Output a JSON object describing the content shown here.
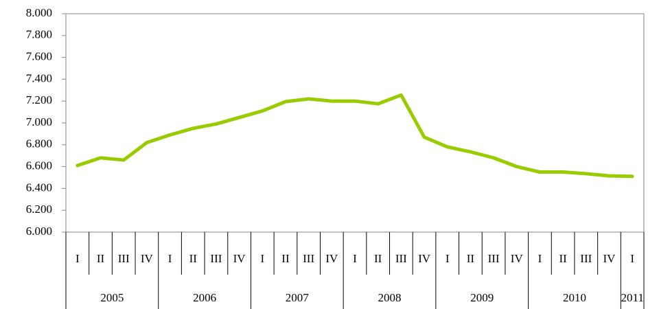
{
  "chart_data": {
    "type": "line",
    "categories": [
      "I",
      "II",
      "III",
      "IV",
      "I",
      "II",
      "III",
      "IV",
      "I",
      "II",
      "III",
      "IV",
      "I",
      "II",
      "III",
      "IV",
      "I",
      "II",
      "III",
      "IV",
      "I",
      "II",
      "III",
      "IV",
      "I"
    ],
    "category_groups": [
      "2005",
      "2006",
      "2007",
      "2008",
      "2009",
      "2010",
      "2011"
    ],
    "series": [
      {
        "color": "#99cc00",
        "values": [
          6610,
          6680,
          6660,
          6820,
          6890,
          6950,
          6990,
          7050,
          7110,
          7195,
          7220,
          7200,
          7200,
          7175,
          7255,
          6870,
          6780,
          6735,
          6680,
          6600,
          6550,
          6550,
          6535,
          6515,
          6510
        ]
      }
    ],
    "ylim": [
      6000,
      8000
    ],
    "yticks": [
      {
        "value": 6000,
        "label": "6.000"
      },
      {
        "value": 6200,
        "label": "6.200"
      },
      {
        "value": 6400,
        "label": "6.400"
      },
      {
        "value": 6600,
        "label": "6.600"
      },
      {
        "value": 6800,
        "label": "6.800"
      },
      {
        "value": 7000,
        "label": "7.000"
      },
      {
        "value": 7200,
        "label": "7.200"
      },
      {
        "value": 7400,
        "label": "7.400"
      },
      {
        "value": 7600,
        "label": "7.600"
      },
      {
        "value": 7800,
        "label": "7.800"
      },
      {
        "value": 8000,
        "label": "8.000"
      }
    ],
    "grid": false
  }
}
